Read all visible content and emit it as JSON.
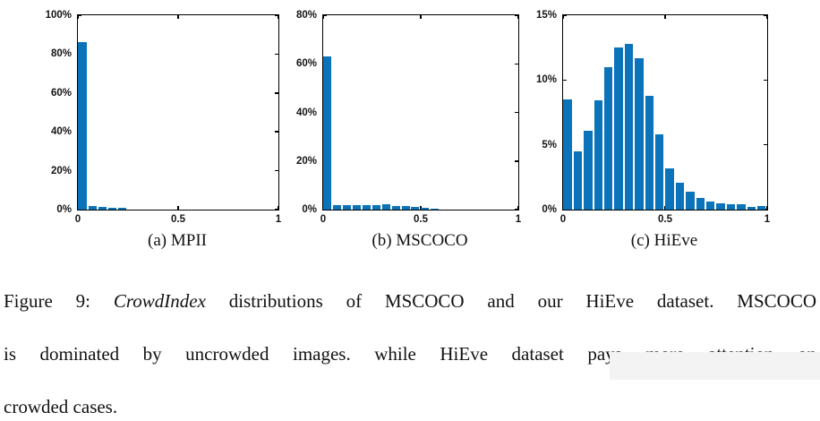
{
  "figure": {
    "caption_lines": [
      {
        "justified": true,
        "segments": [
          {
            "t": "Figure 9: "
          },
          {
            "t": "CrowdIndex",
            "italic": true
          },
          {
            "t": " distributions of MSCOCO and our HiEve dataset. MSCOCO"
          }
        ]
      },
      {
        "justified": true,
        "segments": [
          {
            "t": "is dominated by uncrowded images. while HiEve dataset pays more attention on"
          }
        ]
      },
      {
        "justified": false,
        "segments": [
          {
            "t": "crowded cases."
          }
        ]
      }
    ],
    "colors": {
      "bar": "#0b73b9",
      "axis": "#000000",
      "tick_text": "#141414"
    }
  },
  "chart_data": [
    {
      "type": "bar",
      "title": "(a) MPII",
      "xlabel": "",
      "ylabel": "",
      "xlim": [
        0,
        1
      ],
      "ylim": [
        0,
        100
      ],
      "grid": false,
      "legend": "none",
      "bin_width": 0.05,
      "x_ticks": [
        {
          "label": "0",
          "v": 0
        },
        {
          "label": "0.5",
          "v": 0.5
        },
        {
          "label": "1",
          "v": 1
        }
      ],
      "y_ticks": [
        {
          "label": "0%",
          "v": 0
        },
        {
          "label": "20%",
          "v": 20
        },
        {
          "label": "40%",
          "v": 40
        },
        {
          "label": "60%",
          "v": 60
        },
        {
          "label": "80%",
          "v": 80
        },
        {
          "label": "100%",
          "v": 100
        }
      ],
      "values": [
        86,
        1.8,
        1.4,
        1.0,
        1.0,
        0,
        0,
        0,
        0,
        0,
        0,
        0,
        0,
        0,
        0,
        0,
        0,
        0,
        0,
        0
      ]
    },
    {
      "type": "bar",
      "title": "(b) MSCOCO",
      "xlabel": "",
      "ylabel": "",
      "xlim": [
        0,
        1
      ],
      "ylim": [
        0,
        80
      ],
      "grid": false,
      "legend": "none",
      "bin_width": 0.05,
      "x_ticks": [
        {
          "label": "0",
          "v": 0
        },
        {
          "label": "0.5",
          "v": 0.5
        },
        {
          "label": "1",
          "v": 1
        }
      ],
      "y_ticks": [
        {
          "label": "0%",
          "v": 0
        },
        {
          "label": "20%",
          "v": 20
        },
        {
          "label": "40%",
          "v": 40
        },
        {
          "label": "60%",
          "v": 60
        },
        {
          "label": "80%",
          "v": 80
        }
      ],
      "values": [
        63,
        2.0,
        1.8,
        2.0,
        1.8,
        2.0,
        2.2,
        1.6,
        1.4,
        1.0,
        0.6,
        0.3,
        0,
        0,
        0,
        0,
        0,
        0,
        0,
        0
      ]
    },
    {
      "type": "bar",
      "title": "(c) HiEve",
      "xlabel": "",
      "ylabel": "",
      "xlim": [
        0,
        1
      ],
      "ylim": [
        0,
        15
      ],
      "grid": false,
      "legend": "none",
      "bin_width": 0.05,
      "x_ticks": [
        {
          "label": "0",
          "v": 0
        },
        {
          "label": "0.5",
          "v": 0.5
        },
        {
          "label": "1",
          "v": 1
        }
      ],
      "y_ticks": [
        {
          "label": "0%",
          "v": 0
        },
        {
          "label": "5%",
          "v": 5
        },
        {
          "label": "10%",
          "v": 10
        },
        {
          "label": "15%",
          "v": 15
        }
      ],
      "values": [
        8.5,
        4.5,
        6.1,
        8.4,
        11.0,
        12.5,
        12.8,
        11.7,
        8.8,
        5.8,
        3.2,
        2.1,
        1.4,
        0.9,
        0.6,
        0.5,
        0.45,
        0.45,
        0.2,
        0.3
      ]
    }
  ]
}
